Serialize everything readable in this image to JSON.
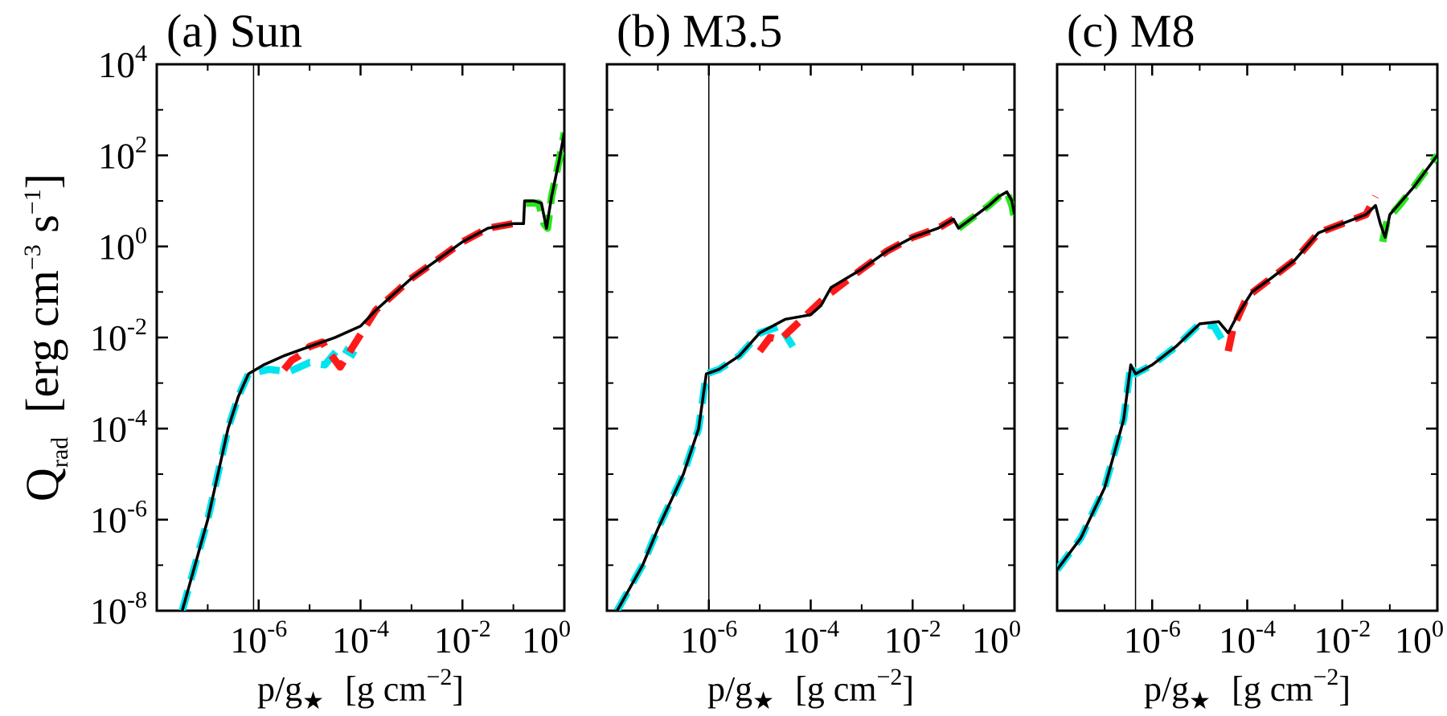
{
  "figure": {
    "ylabel": {
      "symbol": "Q",
      "subscript": "rad",
      "units_main": "[erg cm",
      "units_exp1": "−3",
      "units_mid": " s",
      "units_exp2": "−1",
      "units_end": "]"
    },
    "xlabel": {
      "symbol": "p/g",
      "subscript": "★",
      "units_main": "[g cm",
      "units_exp": "−2",
      "units_end": "]"
    },
    "colors": {
      "total": "#000000",
      "component_a": "#00e4ef",
      "component_b": "#ff1a1a",
      "component_c": "#27e61c",
      "marker_line": "#000000"
    }
  },
  "chart_data": [
    {
      "type": "line",
      "title": "(a) Sun",
      "xscale": "log",
      "yscale": "log",
      "xlim": [
        1e-08,
        1
      ],
      "ylim": [
        1e-08,
        10000.0
      ],
      "xticks": [
        "10-6",
        "10-4",
        "10-2",
        "100"
      ],
      "yticks": [
        "10-8",
        "10-6",
        "10-4",
        "10-2",
        "100",
        "102",
        "104"
      ],
      "vline_log10x": -6.1,
      "series": [
        {
          "name": "total",
          "color": "#000000",
          "style": "solid",
          "points": [
            [
              -7.5,
              -8
            ],
            [
              -7.3,
              -7.2
            ],
            [
              -7.0,
              -6.0
            ],
            [
              -6.8,
              -5.0
            ],
            [
              -6.6,
              -4.0
            ],
            [
              -6.4,
              -3.3
            ],
            [
              -6.2,
              -2.8
            ],
            [
              -5.9,
              -2.6
            ],
            [
              -5.5,
              -2.4
            ],
            [
              -5.0,
              -2.2
            ],
            [
              -4.5,
              -2.0
            ],
            [
              -4.0,
              -1.75
            ],
            [
              -3.7,
              -1.4
            ],
            [
              -3.3,
              -1.0
            ],
            [
              -3.0,
              -0.7
            ],
            [
              -2.5,
              -0.3
            ],
            [
              -2.0,
              0.1
            ],
            [
              -1.5,
              0.4
            ],
            [
              -1.0,
              0.5
            ],
            [
              -0.8,
              0.5
            ],
            [
              -0.78,
              1.0
            ],
            [
              -0.6,
              1.0
            ],
            [
              -0.45,
              0.95
            ],
            [
              -0.35,
              0.4
            ],
            [
              -0.25,
              1.1
            ],
            [
              -0.1,
              1.9
            ],
            [
              0,
              2.5
            ]
          ]
        },
        {
          "name": "component_a",
          "color": "#00e4ef",
          "style": "dashed",
          "points": [
            [
              -7.5,
              -8
            ],
            [
              -7.3,
              -7.2
            ],
            [
              -7.0,
              -6.0
            ],
            [
              -6.8,
              -5.0
            ],
            [
              -6.6,
              -4.0
            ],
            [
              -6.4,
              -3.3
            ],
            [
              -6.2,
              -2.8
            ],
            [
              -5.8,
              -2.7
            ],
            [
              -5.4,
              -2.75
            ],
            [
              -5.0,
              -2.55
            ],
            [
              -4.7,
              -2.6
            ],
            [
              -4.4,
              -2.2
            ],
            [
              -4.1,
              -2.4
            ]
          ]
        },
        {
          "name": "component_b",
          "color": "#ff1a1a",
          "style": "dashed",
          "points": [
            [
              -5.5,
              -2.7
            ],
            [
              -5.35,
              -2.5
            ],
            [
              -5.2,
              -2.4
            ],
            [
              -5.0,
              -2.2
            ],
            [
              -4.75,
              -2.1
            ],
            [
              -4.7,
              -2.2
            ],
            [
              -4.6,
              -2.35
            ],
            [
              -4.5,
              -2.5
            ],
            [
              -4.4,
              -2.65
            ],
            [
              -3.7,
              -1.4
            ],
            [
              -3.3,
              -1.0
            ],
            [
              -3.0,
              -0.7
            ],
            [
              -2.5,
              -0.3
            ],
            [
              -2.0,
              0.1
            ],
            [
              -1.5,
              0.4
            ],
            [
              -1.0,
              0.5
            ]
          ]
        },
        {
          "name": "component_c",
          "color": "#27e61c",
          "style": "dashed",
          "points": [
            [
              -0.75,
              0.95
            ],
            [
              -0.5,
              0.95
            ],
            [
              -0.4,
              0.5
            ],
            [
              -0.33,
              0.4
            ],
            [
              -0.25,
              1.1
            ],
            [
              -0.1,
              1.9
            ],
            [
              0,
              2.5
            ]
          ]
        }
      ]
    },
    {
      "type": "line",
      "title": "(b) M3.5",
      "xscale": "log",
      "yscale": "log",
      "xlim": [
        1e-08,
        1
      ],
      "ylim": [
        1e-08,
        10000.0
      ],
      "xticks": [
        "10-6",
        "10-4",
        "10-2",
        "100"
      ],
      "yticks": [
        "10-8",
        "10-6",
        "10-4",
        "10-2",
        "100",
        "102",
        "104"
      ],
      "vline_log10x": -6.0,
      "series": [
        {
          "name": "total",
          "color": "#000000",
          "style": "solid",
          "points": [
            [
              -7.8,
              -8
            ],
            [
              -7.3,
              -7.0
            ],
            [
              -7.0,
              -6.2
            ],
            [
              -6.5,
              -5.0
            ],
            [
              -6.2,
              -4.0
            ],
            [
              -6.05,
              -2.8
            ],
            [
              -5.8,
              -2.7
            ],
            [
              -5.4,
              -2.4
            ],
            [
              -5.0,
              -1.9
            ],
            [
              -4.5,
              -1.6
            ],
            [
              -4.0,
              -1.5
            ],
            [
              -3.8,
              -1.3
            ],
            [
              -3.6,
              -0.9
            ],
            [
              -3.0,
              -0.5
            ],
            [
              -2.5,
              -0.1
            ],
            [
              -2.0,
              0.2
            ],
            [
              -1.5,
              0.4
            ],
            [
              -1.2,
              0.6
            ],
            [
              -1.1,
              0.4
            ],
            [
              -0.8,
              0.65
            ],
            [
              -0.5,
              0.9
            ],
            [
              -0.3,
              1.1
            ],
            [
              -0.15,
              1.2
            ],
            [
              -0.05,
              1.0
            ],
            [
              0,
              0.7
            ]
          ]
        },
        {
          "name": "component_a",
          "color": "#00e4ef",
          "style": "dashed",
          "points": [
            [
              -7.8,
              -8
            ],
            [
              -7.3,
              -7.0
            ],
            [
              -7.0,
              -6.2
            ],
            [
              -6.5,
              -5.0
            ],
            [
              -6.2,
              -4.0
            ],
            [
              -6.05,
              -2.8
            ],
            [
              -5.8,
              -2.7
            ],
            [
              -5.4,
              -2.4
            ],
            [
              -5.0,
              -1.9
            ],
            [
              -4.6,
              -1.75
            ],
            [
              -4.35,
              -2.2
            ]
          ]
        },
        {
          "name": "component_b",
          "color": "#ff1a1a",
          "style": "dashed",
          "points": [
            [
              -5.0,
              -2.3
            ],
            [
              -4.8,
              -2.0
            ],
            [
              -4.6,
              -2.05
            ],
            [
              -3.7,
              -1.1
            ],
            [
              -3.0,
              -0.5
            ],
            [
              -2.5,
              -0.1
            ],
            [
              -2.0,
              0.2
            ],
            [
              -1.5,
              0.4
            ],
            [
              -1.2,
              0.6
            ]
          ]
        },
        {
          "name": "component_c",
          "color": "#27e61c",
          "style": "dashed",
          "points": [
            [
              -1.1,
              0.4
            ],
            [
              -0.8,
              0.65
            ],
            [
              -0.5,
              0.9
            ],
            [
              -0.3,
              1.1
            ],
            [
              -0.15,
              1.2
            ],
            [
              -0.05,
              0.9
            ],
            [
              0,
              0.6
            ]
          ]
        }
      ]
    },
    {
      "type": "line",
      "title": "(c) M8",
      "xscale": "log",
      "yscale": "log",
      "xlim": [
        1e-08,
        1
      ],
      "ylim": [
        1e-08,
        10000.0
      ],
      "xticks": [
        "10-6",
        "10-4",
        "10-2",
        "100"
      ],
      "yticks": [
        "10-8",
        "10-6",
        "10-4",
        "10-2",
        "100",
        "102",
        "104"
      ],
      "vline_log10x": -6.35,
      "series": [
        {
          "name": "total",
          "color": "#000000",
          "style": "solid",
          "points": [
            [
              -8.0,
              -7.1
            ],
            [
              -7.5,
              -6.4
            ],
            [
              -7.0,
              -5.3
            ],
            [
              -6.6,
              -3.8
            ],
            [
              -6.45,
              -2.6
            ],
            [
              -6.35,
              -2.8
            ],
            [
              -6.0,
              -2.6
            ],
            [
              -5.5,
              -2.2
            ],
            [
              -5.0,
              -1.7
            ],
            [
              -4.6,
              -1.65
            ],
            [
              -4.4,
              -1.9
            ],
            [
              -4.2,
              -1.5
            ],
            [
              -3.9,
              -1.0
            ],
            [
              -3.5,
              -0.7
            ],
            [
              -3.0,
              -0.3
            ],
            [
              -2.5,
              0.3
            ],
            [
              -2.0,
              0.5
            ],
            [
              -1.5,
              0.7
            ],
            [
              -1.3,
              0.9
            ],
            [
              -1.2,
              0.5
            ],
            [
              -1.1,
              0.2
            ],
            [
              -1.0,
              0.7
            ],
            [
              -0.5,
              1.3
            ],
            [
              0,
              2.0
            ]
          ]
        },
        {
          "name": "component_a",
          "color": "#00e4ef",
          "style": "dashed",
          "points": [
            [
              -8.0,
              -7.1
            ],
            [
              -7.5,
              -6.4
            ],
            [
              -7.0,
              -5.3
            ],
            [
              -6.6,
              -3.8
            ],
            [
              -6.45,
              -2.6
            ],
            [
              -6.35,
              -2.8
            ],
            [
              -6.0,
              -2.6
            ],
            [
              -5.5,
              -2.2
            ],
            [
              -5.0,
              -1.7
            ],
            [
              -4.7,
              -1.75
            ],
            [
              -4.5,
              -2.1
            ]
          ]
        },
        {
          "name": "component_b",
          "color": "#ff1a1a",
          "style": "dashed",
          "points": [
            [
              -4.4,
              -2.3
            ],
            [
              -4.3,
              -1.8
            ],
            [
              -4.0,
              -1.1
            ],
            [
              -3.5,
              -0.7
            ],
            [
              -3.0,
              -0.3
            ],
            [
              -2.5,
              0.3
            ],
            [
              -2.0,
              0.5
            ],
            [
              -1.5,
              0.7
            ],
            [
              -1.3,
              1.1
            ]
          ]
        },
        {
          "name": "component_c",
          "color": "#27e61c",
          "style": "dashed",
          "points": [
            [
              -1.15,
              0.1
            ],
            [
              -1.05,
              0.6
            ],
            [
              -0.8,
              0.9
            ],
            [
              -0.5,
              1.3
            ],
            [
              0,
              2.0
            ]
          ]
        }
      ]
    }
  ]
}
